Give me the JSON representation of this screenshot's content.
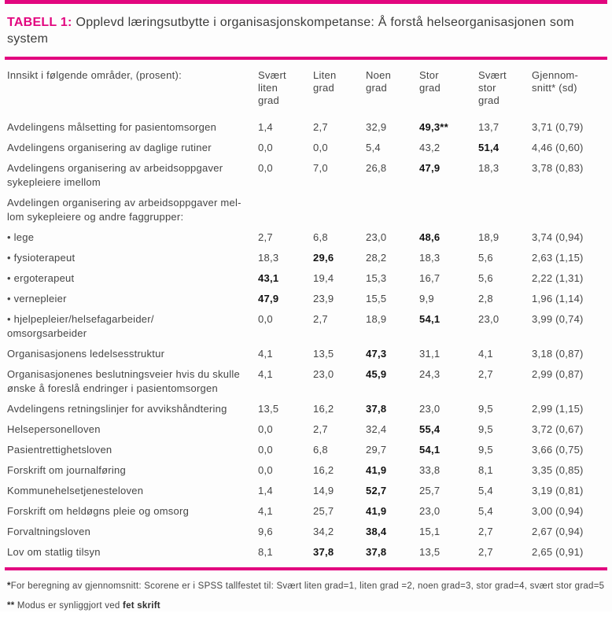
{
  "colors": {
    "accent_magenta": "#e2067f",
    "body_text": "#454545",
    "bold_text": "#121212"
  },
  "title": {
    "label": "TABELL 1:",
    "text": "Opplevd læringsutbytte i organisasjonskompetanse: Å forstå helseorganisasjonen som system"
  },
  "table": {
    "row_header": "Innsikt i følgende områder, (prosent):",
    "columns": [
      "Svært\nliten\ngrad",
      "Liten\ngrad",
      "Noen\ngrad",
      "Stor\ngrad",
      "Svært\nstor\ngrad",
      "Gjennom-\nsnitt* (sd)"
    ],
    "rows": [
      {
        "label": "Avdelingens målsetting for pasientomsorgen",
        "values": [
          "1,4",
          "2,7",
          "32,9",
          "49,3**",
          "13,7",
          "3,71 (0,79)"
        ],
        "bold": [
          3
        ]
      },
      {
        "label": "Avdelingens organisering av daglige rutiner",
        "values": [
          "0,0",
          "0,0",
          "5,4",
          "43,2",
          "51,4",
          "4,46 (0,60)"
        ],
        "bold": [
          4
        ]
      },
      {
        "label": "Avdelingens organisering av arbeidsoppgaver\nsykepleiere imellom",
        "values": [
          "0,0",
          "7,0",
          "26,8",
          "47,9",
          "18,3",
          "3,78 (0,83)"
        ],
        "bold": [
          3
        ]
      },
      {
        "label": "Avdelingen organisering av arbeidsoppgaver mel-\nlom sykepleiere og andre faggrupper:",
        "values": [
          "",
          "",
          "",
          "",
          "",
          ""
        ],
        "bold": [],
        "section": true
      },
      {
        "label": "• lege",
        "values": [
          "2,7",
          "6,8",
          "23,0",
          "48,6",
          "18,9",
          "3,74 (0,94)"
        ],
        "bold": [
          3
        ]
      },
      {
        "label": "• fysioterapeut",
        "values": [
          "18,3",
          "29,6",
          "28,2",
          "18,3",
          "5,6",
          "2,63 (1,15)"
        ],
        "bold": [
          1
        ]
      },
      {
        "label": "• ergoterapeut",
        "values": [
          "43,1",
          "19,4",
          "15,3",
          "16,7",
          "5,6",
          "2,22 (1,31)"
        ],
        "bold": [
          0
        ]
      },
      {
        "label": "• vernepleier",
        "values": [
          "47,9",
          "23,9",
          "15,5",
          "9,9",
          "2,8",
          "1,96 (1,14)"
        ],
        "bold": [
          0
        ]
      },
      {
        "label": "• hjelpepleier/helsefagarbeider/\nomsorgsarbeider",
        "values": [
          "0,0",
          "2,7",
          "18,9",
          "54,1",
          "23,0",
          "3,99 (0,74)"
        ],
        "bold": [
          3
        ]
      },
      {
        "label": "Organisasjonens ledelsesstruktur",
        "values": [
          "4,1",
          "13,5",
          "47,3",
          "31,1",
          "4,1",
          "3,18 (0,87)"
        ],
        "bold": [
          2
        ]
      },
      {
        "label": "Organisasjonenes beslutningsveier hvis du skulle\nønske å foreslå endringer i pasientomsorgen",
        "values": [
          "4,1",
          "23,0",
          "45,9",
          "24,3",
          "2,7",
          "2,99 (0,87)"
        ],
        "bold": [
          2
        ]
      },
      {
        "label": "Avdelingens retningslinjer for avvikshåndtering",
        "values": [
          "13,5",
          "16,2",
          "37,8",
          "23,0",
          "9,5",
          "2,99 (1,15)"
        ],
        "bold": [
          2
        ]
      },
      {
        "label": "Helsepersonelloven",
        "values": [
          "0,0",
          "2,7",
          "32,4",
          "55,4",
          "9,5",
          "3,72 (0,67)"
        ],
        "bold": [
          3
        ]
      },
      {
        "label": "Pasientrettighetsloven",
        "values": [
          "0,0",
          "6,8",
          "29,7",
          "54,1",
          "9,5",
          "3,66 (0,75)"
        ],
        "bold": [
          3
        ]
      },
      {
        "label": "Forskrift om journalføring",
        "values": [
          "0,0",
          "16,2",
          "41,9",
          "33,8",
          "8,1",
          "3,35 (0,85)"
        ],
        "bold": [
          2
        ]
      },
      {
        "label": "Kommunehelsetjenesteloven",
        "values": [
          "1,4",
          "14,9",
          "52,7",
          "25,7",
          "5,4",
          "3,19 (0,81)"
        ],
        "bold": [
          2
        ]
      },
      {
        "label": "Forskrift om heldøgns pleie og omsorg",
        "values": [
          "4,1",
          "25,7",
          "41,9",
          "23,0",
          "5,4",
          "3,00 (0,94)"
        ],
        "bold": [
          2
        ]
      },
      {
        "label": "Forvaltningsloven",
        "values": [
          "9,6",
          "34,2",
          "38,4",
          "15,1",
          "2,7",
          "2,67 (0,94)"
        ],
        "bold": [
          2
        ]
      },
      {
        "label": "Lov om statlig tilsyn",
        "values": [
          "8,1",
          "37,8",
          "37,8",
          "13,5",
          "2,7",
          "2,65 (0,91)"
        ],
        "bold": [
          1,
          2
        ]
      }
    ]
  },
  "footnotes": {
    "avg_marker": "*",
    "avg_text": "For beregning av gjennomsnitt: Scorene er i SPSS tallfestet til: Svært liten grad=1, liten grad =2, noen grad=3, stor grad=4, svært stor grad=5",
    "modus_marker": "**",
    "modus_text": " Modus er synliggjort ved ",
    "modus_bold": "fet skrift"
  }
}
